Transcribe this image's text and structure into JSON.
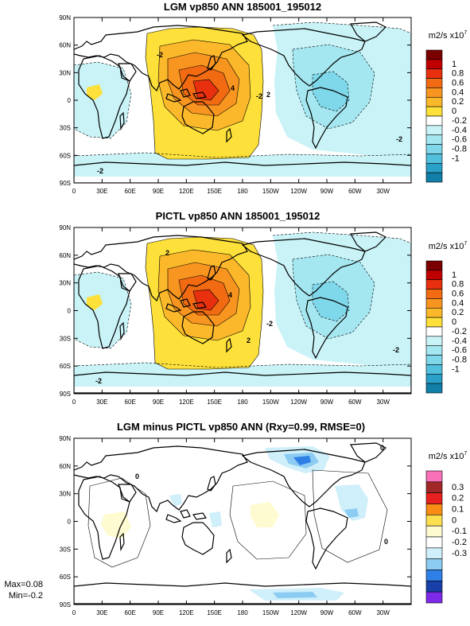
{
  "panels": [
    {
      "title": "LGM vp850 ANN 185001_195012",
      "units_prefix": "m2/s x10",
      "units_exp": "7",
      "colorbar_labels": [
        "1",
        "0.8",
        "0.6",
        "0.4",
        "0.2",
        "0",
        "-0.2",
        "-0.4",
        "-0.6",
        "-0.8",
        "-1"
      ],
      "colorbar_colors": [
        "#7a0000",
        "#c00000",
        "#e8300f",
        "#f26a12",
        "#f89520",
        "#fbb82a",
        "#fde03a",
        "#ffffff",
        "#c9f3f7",
        "#a4e7f1",
        "#7fd7ea",
        "#52bfdd",
        "#2aa0c9",
        "#117fa8"
      ],
      "contour_labels": [
        "-2",
        "4",
        "-2",
        "-2",
        "-2",
        "2"
      ]
    },
    {
      "title": "PICTL vp850 ANN 185001_195012",
      "units_prefix": "m2/s x10",
      "units_exp": "7",
      "colorbar_labels": [
        "1",
        "0.8",
        "0.6",
        "0.4",
        "0.2",
        "0",
        "-0.2",
        "-0.4",
        "-0.6",
        "-0.8",
        "-1"
      ],
      "colorbar_colors": [
        "#7a0000",
        "#c00000",
        "#e8300f",
        "#f26a12",
        "#f89520",
        "#fbb82a",
        "#fde03a",
        "#ffffff",
        "#c9f3f7",
        "#a4e7f1",
        "#7fd7ea",
        "#52bfdd",
        "#2aa0c9",
        "#117fa8"
      ],
      "contour_labels": [
        "2",
        "4",
        "-2",
        "-2",
        "2",
        "-2"
      ]
    },
    {
      "title": "LGM minus PICTL vp850 ANN (Rxy=0.99, RMSE=0)",
      "units_prefix": "m2/s x10",
      "units_exp": "7",
      "colorbar_labels": [
        "0.3",
        "0.2",
        "0.1",
        "0",
        "-0.1",
        "-0.2",
        "-0.3"
      ],
      "colorbar_colors": [
        "#f870b8",
        "#a02828",
        "#e82020",
        "#f88c14",
        "#fde050",
        "#fffbd0",
        "#ffffff",
        "#cfeffa",
        "#8ccbf2",
        "#2e7fe6",
        "#1840a8",
        "#7d2ae8"
      ],
      "contour_labels": [
        "0",
        "0",
        "0"
      ]
    }
  ],
  "lat_labels": [
    "90N",
    "60N",
    "30N",
    "0",
    "30S",
    "60S",
    "90S"
  ],
  "lon_labels": [
    "0",
    "30E",
    "60E",
    "90E",
    "120E",
    "150E",
    "180",
    "150W",
    "120W",
    "90W",
    "60W",
    "30W"
  ],
  "stats": {
    "max": "Max=0.08",
    "min": "Min=-0.2"
  }
}
